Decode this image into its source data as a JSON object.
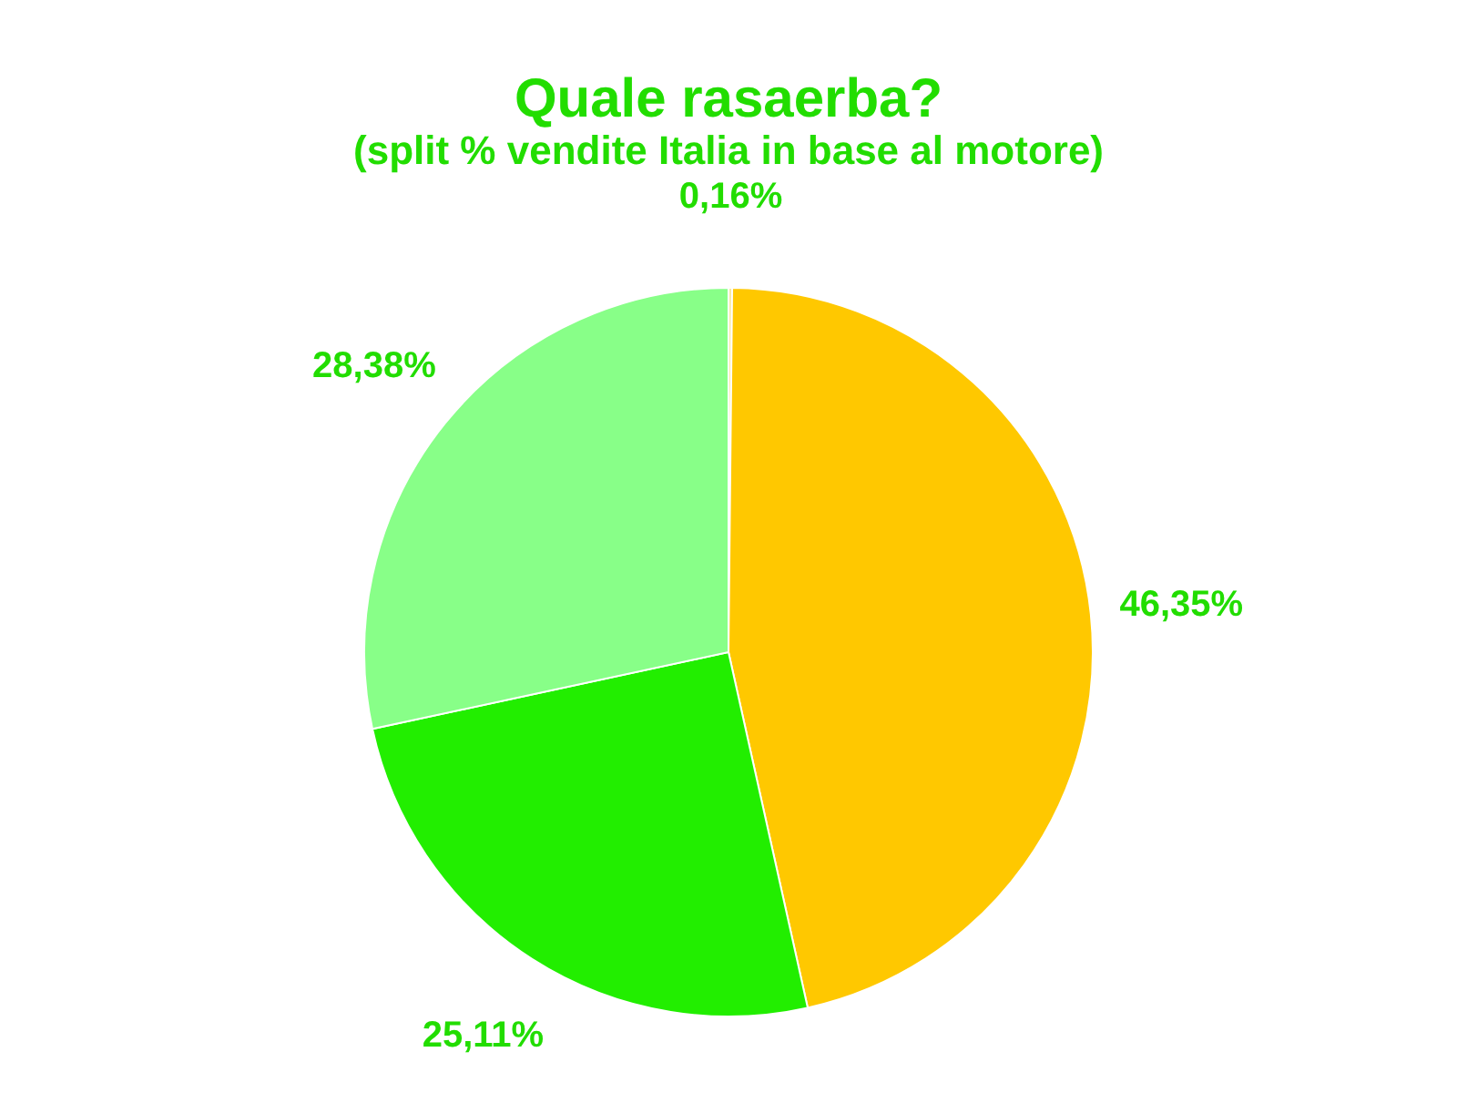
{
  "chart_data": {
    "type": "pie",
    "title": "Quale rasaerba?",
    "subtitle": "(split % vendite Italia in base al motore)",
    "categories": [
      null,
      null,
      null,
      null
    ],
    "values": [
      0.16,
      46.35,
      25.11,
      28.38
    ],
    "colors": [
      "#f8e8a0",
      "#ffc800",
      "#22ee00",
      "#88ff88"
    ],
    "value_labels": [
      "0,16%",
      "46,35%",
      "25,11%",
      "28,38%"
    ],
    "legend": false
  }
}
